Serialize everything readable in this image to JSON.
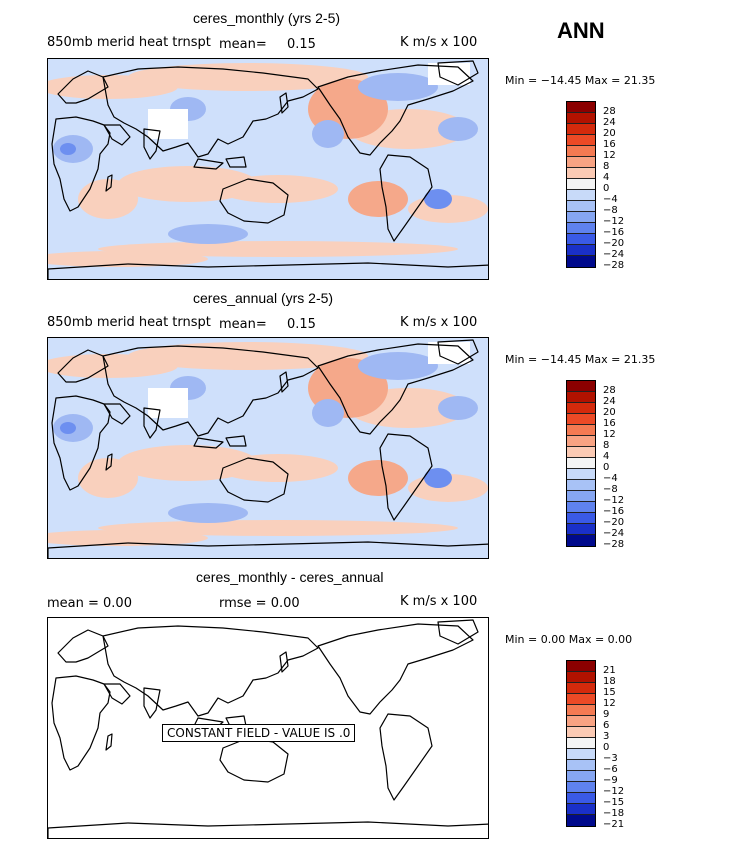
{
  "ann_label": "ANN",
  "panels": [
    {
      "title": "ceres_monthly (yrs 2-5)",
      "variable": "850mb merid heat trnspt",
      "mean_label": "mean=",
      "mean_value": "0.15",
      "units": "K m/s x 100",
      "minmax": "Min = −14.45 Max =  21.35",
      "colorbar_labels": [
        "28",
        "24",
        "20",
        "16",
        "12",
        "8",
        "4",
        "0",
        "−4",
        "−8",
        "−12",
        "−16",
        "−20",
        "−24",
        "−28"
      ]
    },
    {
      "title": "ceres_annual (yrs 2-5)",
      "variable": "850mb merid heat trnspt",
      "mean_label": "mean=",
      "mean_value": "0.15",
      "units": "K m/s x 100",
      "minmax": "Min = −14.45 Max =  21.35",
      "colorbar_labels": [
        "28",
        "24",
        "20",
        "16",
        "12",
        "8",
        "4",
        "0",
        "−4",
        "−8",
        "−12",
        "−16",
        "−20",
        "−24",
        "−28"
      ]
    },
    {
      "title": "ceres_monthly - ceres_annual",
      "mean_text": "mean =    0.00",
      "rmse_text": "rmse =    0.00",
      "units": "K m/s x 100",
      "minmax": "Min =   0.00 Max =   0.00",
      "constant_note": "CONSTANT FIELD - VALUE IS .0",
      "colorbar_labels": [
        "21",
        "18",
        "15",
        "12",
        "9",
        "6",
        "3",
        "0",
        "−3",
        "−6",
        "−9",
        "−12",
        "−15",
        "−18",
        "−21"
      ]
    }
  ],
  "colorbar_colors": [
    "#8b0000",
    "#b21200",
    "#d42a0c",
    "#ec4a26",
    "#f47a52",
    "#f8a383",
    "#fbcab4",
    "#f4f4f4",
    "#c8daf9",
    "#a8c2f6",
    "#86a6f2",
    "#5f82ee",
    "#3a5ae6",
    "#1a30c8",
    "#000a8c"
  ],
  "colors": {
    "warm": "#f9d0bd",
    "warm_strong": "#f5a88a",
    "cool": "#cfe0fb",
    "cool_strong": "#9fb8f3",
    "cool_deep": "#6d8ff0"
  }
}
